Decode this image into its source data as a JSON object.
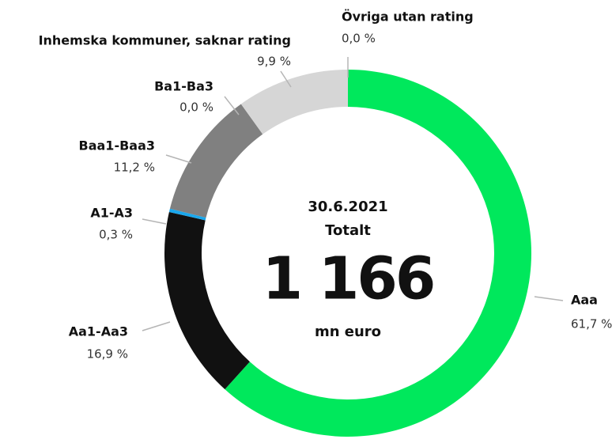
{
  "chart_data": {
    "type": "donut",
    "categories": [
      "Aaa",
      "Aa1-Aa3",
      "A1-A3",
      "Baa1-Baa3",
      "Ba1-Ba3",
      "Inhemska kommuner, saknar rating",
      "Övriga utan rating"
    ],
    "values": [
      61.7,
      16.9,
      0.3,
      11.2,
      0.0,
      9.9,
      0.0
    ],
    "value_labels": [
      "61,7 %",
      "16,9 %",
      "0,3 %",
      "11,2 %",
      "0,0 %",
      "9,9 %",
      "0,0 %"
    ],
    "colors": [
      "#00e85c",
      "#111111",
      "#1aa7ec",
      "#808080",
      "#a0a0a0",
      "#d6d6d6",
      "#e0e0e0"
    ],
    "center_text": [
      "30.6.2021",
      "Totalt",
      "1 166",
      "mn euro"
    ]
  }
}
